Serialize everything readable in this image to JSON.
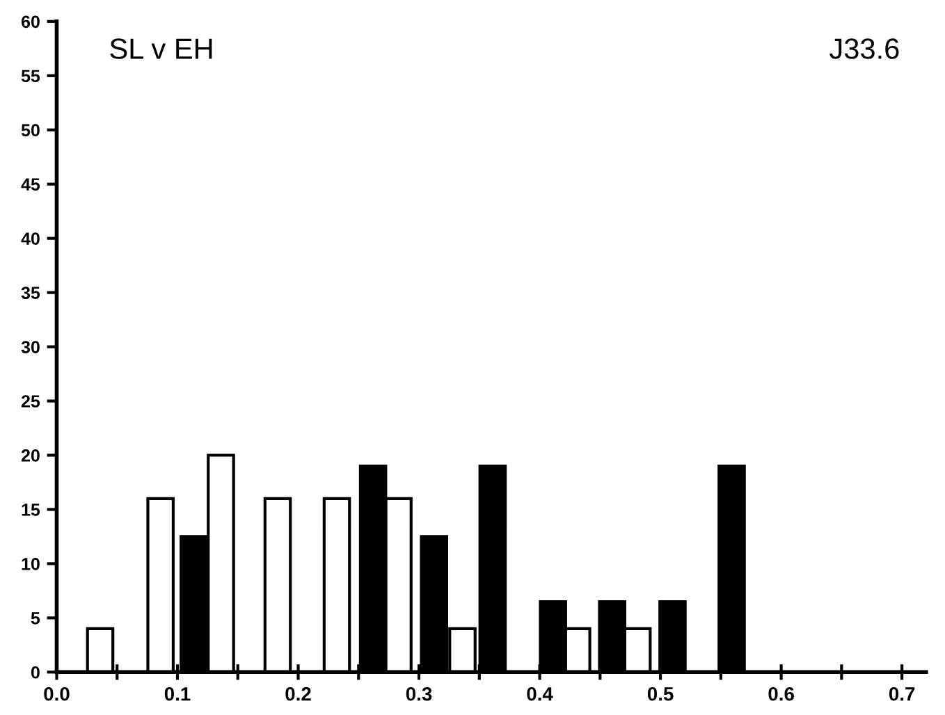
{
  "chart_data": {
    "type": "bar",
    "annotations": [
      "SL v EH",
      "J33.6"
    ],
    "series": [
      {
        "color": "#ffffff",
        "x": [
          0.036,
          0.086,
          0.136,
          0.183,
          0.232,
          0.283,
          0.336,
          0.431,
          0.481
        ],
        "values": [
          4,
          16,
          20,
          16,
          16,
          16,
          4,
          4,
          4
        ]
      },
      {
        "color": "#000000",
        "x": [
          0.1135,
          0.262,
          0.3125,
          0.361,
          0.411,
          0.46,
          0.51,
          0.559
        ],
        "values": [
          12.5,
          19,
          12.5,
          19,
          6.5,
          6.5,
          6.5,
          19
        ]
      }
    ],
    "xlim": [
      0,
      0.72
    ],
    "xticks": [
      {
        "value": 0,
        "label": "0.0"
      },
      {
        "value": 0.05,
        "label": null
      },
      {
        "value": 0.1,
        "label": "0.1"
      },
      {
        "value": 0.15,
        "label": null
      },
      {
        "value": 0.2,
        "label": "0.2"
      },
      {
        "value": 0.25,
        "label": null
      },
      {
        "value": 0.3,
        "label": "0.3"
      },
      {
        "value": 0.35,
        "label": null
      },
      {
        "value": 0.4,
        "label": "0.4"
      },
      {
        "value": 0.45,
        "label": null
      },
      {
        "value": 0.5,
        "label": "0.5"
      },
      {
        "value": 0.55,
        "label": null
      },
      {
        "value": 0.6,
        "label": "0.6"
      },
      {
        "value": 0.65,
        "label": null
      },
      {
        "value": 0.7,
        "label": "0.7"
      }
    ],
    "ylim": [
      0,
      60
    ],
    "yticks": [
      0,
      5,
      10,
      15,
      20,
      25,
      30,
      35,
      40,
      45,
      50,
      55,
      60
    ],
    "grid": false,
    "legend": false
  }
}
